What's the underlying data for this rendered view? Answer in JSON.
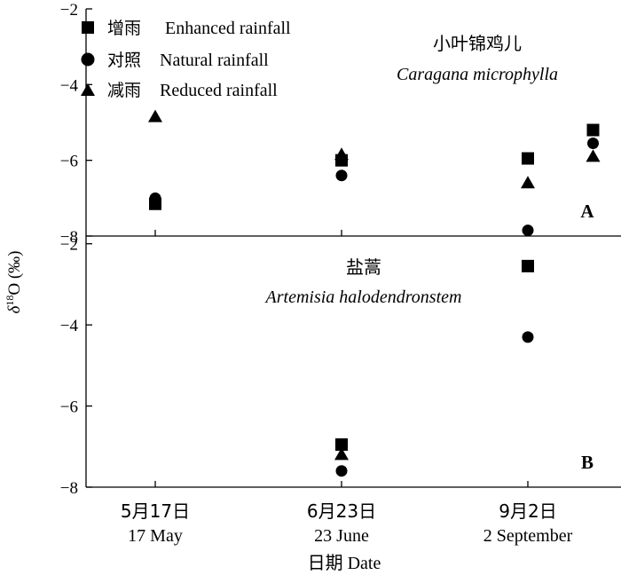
{
  "chart_data": {
    "type": "scatter",
    "ylabel_prefix": "δ",
    "ylabel_sup": "18",
    "ylabel_suffix": "O (‰)",
    "xlabel": "日期 Date",
    "categories": [
      {
        "cn": "5月17日",
        "en": "17 May"
      },
      {
        "cn": "6月23日",
        "en": "23 June"
      },
      {
        "cn": "9月2日",
        "en": "2 September"
      }
    ],
    "legend": [
      {
        "symbol": "square",
        "cn": "增雨",
        "en": "Enhanced rainfall"
      },
      {
        "symbol": "circle",
        "cn": "对照",
        "en": "Natural rainfall"
      },
      {
        "symbol": "triangle",
        "cn": "减雨",
        "en": "Reduced rainfall"
      }
    ],
    "panels": [
      {
        "id": "A",
        "letter": "A",
        "title_cn": "小叶锦鸡儿",
        "title_latin": "Caragana microphylla",
        "ylim": [
          -8,
          -2
        ],
        "yticks": [
          -8,
          -6,
          -4,
          -2
        ],
        "ytick_labels": [
          "−8",
          "−6",
          "−4",
          "−2"
        ],
        "series": [
          {
            "name": "Enhanced rainfall",
            "symbol": "square",
            "points": [
              {
                "x": 0,
                "y": -7.15
              },
              {
                "x": 1,
                "y": -6.0
              },
              {
                "x": 2,
                "y": -5.95
              },
              {
                "x": 2.35,
                "y": -5.2
              }
            ]
          },
          {
            "name": "Natural rainfall",
            "symbol": "circle",
            "points": [
              {
                "x": 0,
                "y": -7.0
              },
              {
                "x": 1,
                "y": -6.4
              },
              {
                "x": 2,
                "y": -7.85
              },
              {
                "x": 2.35,
                "y": -5.55
              }
            ]
          },
          {
            "name": "Reduced rainfall",
            "symbol": "triangle",
            "points": [
              {
                "x": 0,
                "y": -4.85
              },
              {
                "x": 1,
                "y": -5.85
              },
              {
                "x": 2,
                "y": -6.6
              },
              {
                "x": 2.35,
                "y": -5.9
              }
            ]
          }
        ]
      },
      {
        "id": "B",
        "letter": "B",
        "title_cn": "盐蒿",
        "title_latin": "Artemisia halodendronstem",
        "ylim": [
          -8,
          -1
        ],
        "yticks": [
          -8,
          -6,
          -4,
          -2
        ],
        "ytick_labels": [
          "−8",
          "−6",
          "−4",
          "−2"
        ],
        "series": [
          {
            "name": "Enhanced rainfall",
            "symbol": "square",
            "points": [
              {
                "x": 1,
                "y": -6.95
              },
              {
                "x": 2,
                "y": -2.55
              }
            ]
          },
          {
            "name": "Natural rainfall",
            "symbol": "circle",
            "points": [
              {
                "x": 1,
                "y": -7.6
              },
              {
                "x": 2,
                "y": -4.3
              }
            ]
          },
          {
            "name": "Reduced rainfall",
            "symbol": "triangle",
            "points": [
              {
                "x": 1,
                "y": -7.2
              }
            ]
          }
        ]
      }
    ]
  }
}
